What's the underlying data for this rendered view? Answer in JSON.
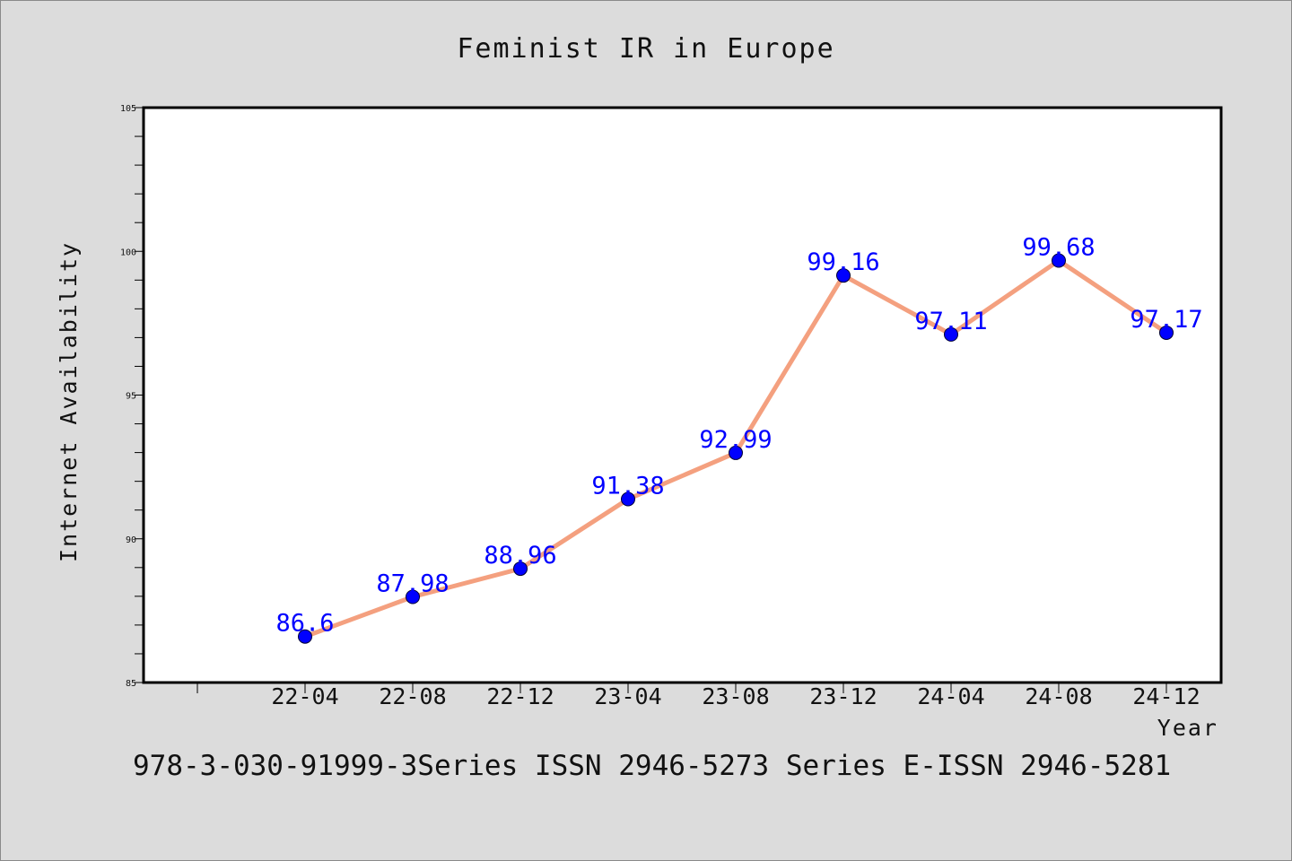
{
  "chart_data": {
    "type": "line",
    "title": "Feminist IR in Europe",
    "xlabel": "Year",
    "ylabel": "Internet Availability",
    "categories": [
      "22-04",
      "22-08",
      "22-12",
      "23-04",
      "23-08",
      "23-12",
      "24-04",
      "24-08",
      "24-12"
    ],
    "series": [
      {
        "values": [
          86.6,
          87.98,
          88.96,
          91.38,
          92.99,
          99.16,
          97.11,
          99.68,
          97.17
        ],
        "labels": [
          "86.6",
          "87.98",
          "88.96",
          "91.38",
          "92.99",
          "99.16",
          "97.11",
          "99.68",
          "97.17"
        ],
        "line_color": "#f4a07f",
        "marker_color": "#0000ff"
      }
    ],
    "ylim": [
      85,
      105
    ],
    "yticks": [
      "85",
      "90",
      "95",
      "100",
      "105"
    ],
    "grid": false,
    "data_label_color": "#0000ff"
  },
  "footer_text": "978-3-030-91999-3Series ISSN 2946-5273 Series E-ISSN 2946-5281"
}
